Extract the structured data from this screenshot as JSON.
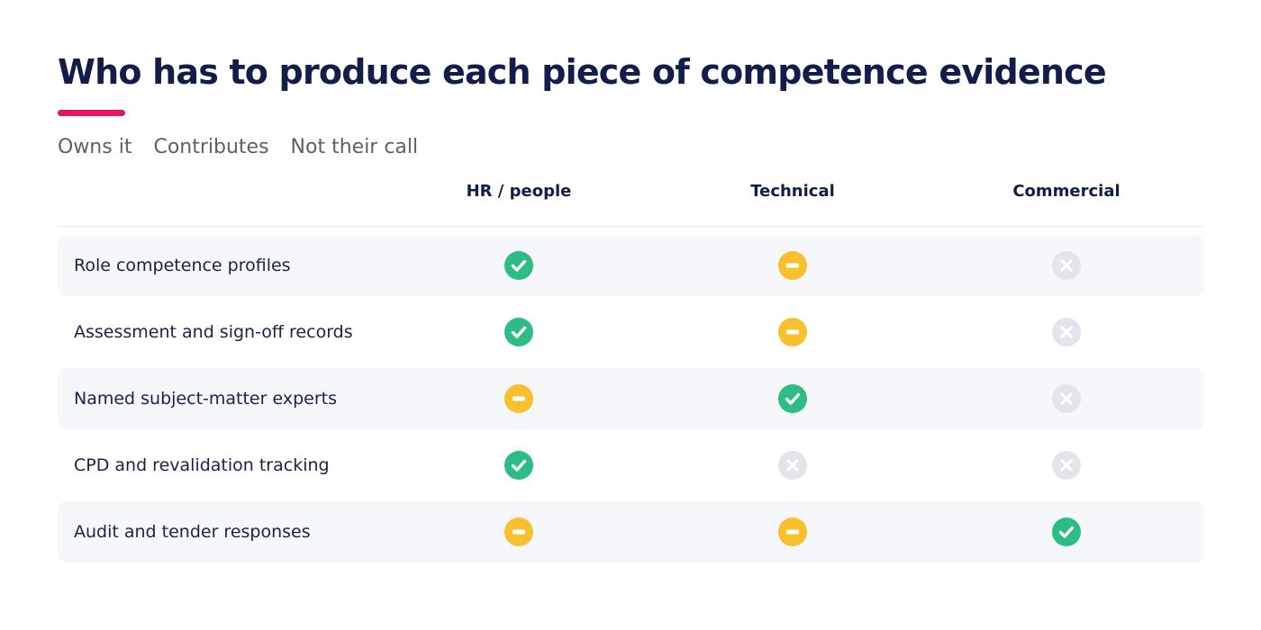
{
  "title": "Who has to produce each piece of competence evidence",
  "legend": [
    "Owns it",
    "Contributes",
    "Not their call"
  ],
  "columns": [
    "HR / people",
    "Technical",
    "Commercial"
  ],
  "rows": [
    {
      "label": "Role competence profiles",
      "cells": [
        "owns",
        "contributes",
        "none"
      ]
    },
    {
      "label": "Assessment and sign-off records",
      "cells": [
        "owns",
        "contributes",
        "none"
      ]
    },
    {
      "label": "Named subject-matter experts",
      "cells": [
        "contributes",
        "owns",
        "none"
      ]
    },
    {
      "label": "CPD and revalidation tracking",
      "cells": [
        "owns",
        "none",
        "none"
      ]
    },
    {
      "label": "Audit and tender responses",
      "cells": [
        "contributes",
        "contributes",
        "owns"
      ]
    }
  ],
  "icons": {
    "owns": "check-circle-icon",
    "contributes": "minus-circle-icon",
    "none": "x-circle-icon"
  },
  "colors": {
    "accent": "#e8135e",
    "owns": "#2dbd84",
    "contributes": "#f8c02d",
    "none": "#e3e4ec"
  }
}
